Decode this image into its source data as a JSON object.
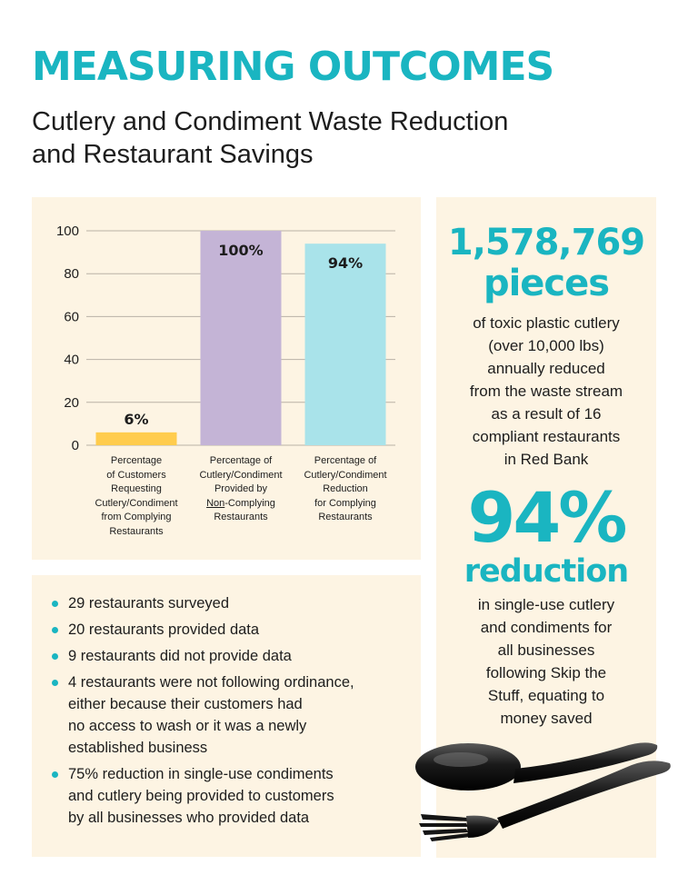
{
  "header": {
    "title": "MEASURING OUTCOMES",
    "subtitle_line1": "Cutlery and Condiment Waste Reduction",
    "subtitle_line2": "and Restaurant Savings"
  },
  "colors": {
    "accent": "#1ab5c1",
    "panel_bg": "#fdf4e3",
    "bar_yellow": "#ffcc4d",
    "bar_purple": "#c4b4d6",
    "bar_cyan": "#a9e3ea"
  },
  "chart_data": {
    "type": "bar",
    "categories": [
      [
        "Percentage",
        "of Customers",
        "Requesting",
        "Cutlery/Condiment",
        "from Complying",
        "Restaurants"
      ],
      [
        "Percentage of",
        "Cutlery/Condiment",
        "Provided by",
        "Non-Complying",
        "Restaurants"
      ],
      [
        "Percentage of",
        "Cutlery/Condiment",
        "Reduction",
        "for Complying",
        "Restaurants"
      ]
    ],
    "values": [
      6,
      100,
      94
    ],
    "data_labels": [
      "6%",
      "100%",
      "94%"
    ],
    "bar_colors": [
      "#ffcc4d",
      "#c4b4d6",
      "#a9e3ea"
    ],
    "ylim": [
      0,
      100
    ],
    "yticks": [
      0,
      20,
      40,
      60,
      80,
      100
    ],
    "grid": true
  },
  "stats": {
    "stat1_number": "1,578,769",
    "stat1_unit": "pieces",
    "stat1_text": [
      "of toxic plastic cutlery",
      "(over 10,000 lbs)",
      "annually reduced",
      "from the waste stream",
      "as a result of 16",
      "compliant restaurants",
      "in Red Bank"
    ],
    "stat2_number": "94%",
    "stat2_label": "reduction",
    "stat2_text": [
      "in single-use cutlery",
      "and condiments for",
      "all businesses",
      "following Skip the",
      "Stuff, equating to",
      "money saved"
    ]
  },
  "bullets": {
    "items": [
      [
        "29 restaurants surveyed"
      ],
      [
        "20 restaurants provided data"
      ],
      [
        "9 restaurants did not provide data"
      ],
      [
        "4 restaurants were not following ordinance,",
        "either because their customers had",
        "no access to wash or it was a newly",
        "established business"
      ],
      [
        "75% reduction in single-use condiments",
        "and cutlery being provided to customers",
        "by all businesses who provided data"
      ]
    ]
  },
  "images": {
    "utensils": "black-plastic-fork-and-spoon"
  }
}
